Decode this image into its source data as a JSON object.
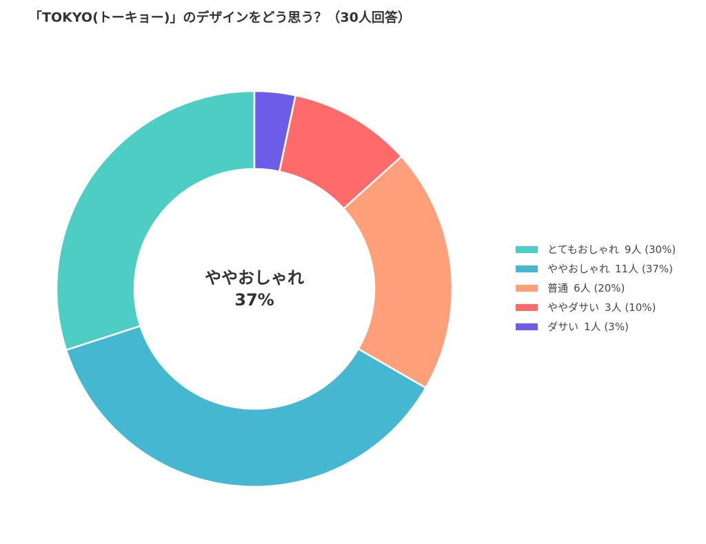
{
  "chart_data": {
    "type": "pie",
    "title": "「TOKYO(トーキョー)」のデザインをどう思う？（30人回答）",
    "categories": [
      "とてもおしゃれ",
      "ややおしゃれ",
      "普通",
      "ややダサい",
      "ダサい"
    ],
    "values": [
      9,
      11,
      6,
      3,
      1
    ],
    "value_labels": [
      "9人 (30%)",
      "11人 (37%)",
      "6人 (20%)",
      "3人 (10%)",
      "1人 (3%)"
    ],
    "colors": [
      "#4ecdc4",
      "#45b7d1",
      "#ffa07a",
      "#ff6b6b",
      "#6c5ce7"
    ],
    "center_text": [
      "ややおしゃれ",
      "37%"
    ],
    "hole": true,
    "direction": "counterclockwise",
    "legend": "right"
  }
}
